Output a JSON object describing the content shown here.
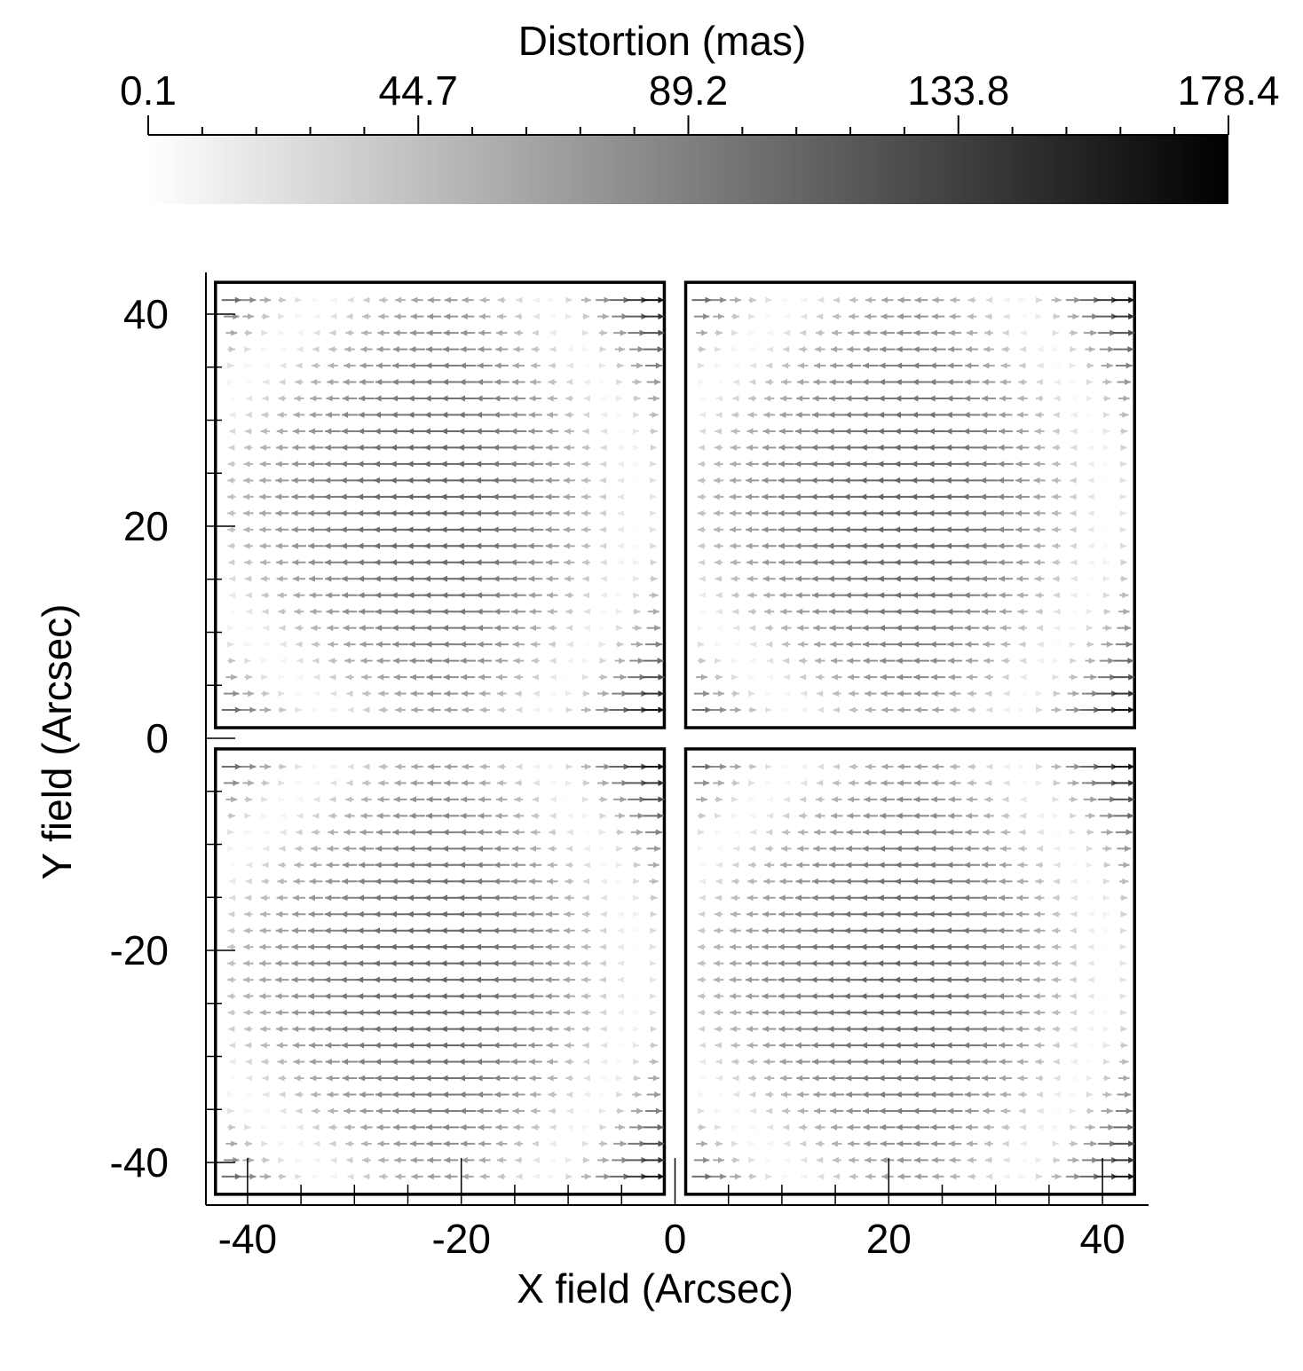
{
  "chart_data": {
    "type": "quiver",
    "colorbar": {
      "label": "Distortion (mas)",
      "ticks": [
        "0.1",
        "44.7",
        "89.2",
        "133.8",
        "178.4"
      ],
      "range": [
        0.1,
        178.4
      ],
      "colormap": [
        "#ffffff",
        "#000000"
      ]
    },
    "xlabel": "X field (Arcsec)",
    "ylabel": "Y field (Arcsec)",
    "xlim": [
      -44,
      44
    ],
    "ylim": [
      -44,
      44
    ],
    "xticks": [
      -40,
      -20,
      0,
      20,
      40
    ],
    "yticks": [
      40,
      20,
      0,
      -20,
      -40
    ],
    "x_tick_labels": [
      "-40",
      "-20",
      "0",
      "20",
      "40"
    ],
    "y_tick_labels": [
      "40",
      "20",
      "0",
      "-20",
      "-40"
    ],
    "grid": false,
    "quadrants": [
      {
        "name": "top-left",
        "x_range": [
          -43,
          -1
        ],
        "y_range": [
          1,
          43
        ]
      },
      {
        "name": "top-right",
        "x_range": [
          1,
          43
        ],
        "y_range": [
          1,
          43
        ]
      },
      {
        "name": "bottom-left",
        "x_range": [
          -43,
          -1
        ],
        "y_range": [
          -43,
          -1
        ]
      },
      {
        "name": "bottom-right",
        "x_range": [
          1,
          43
        ],
        "y_range": [
          -43,
          -1
        ]
      }
    ],
    "field_model": {
      "grid_per_quadrant": [
        26,
        26
      ],
      "direction": "horizontal",
      "pattern": "rightward (+x) arrows near top and bottom edges and near left/right columns; leftward (-x) arrows in central band of each quadrant",
      "max_distortion_mas": 178.4
    }
  }
}
